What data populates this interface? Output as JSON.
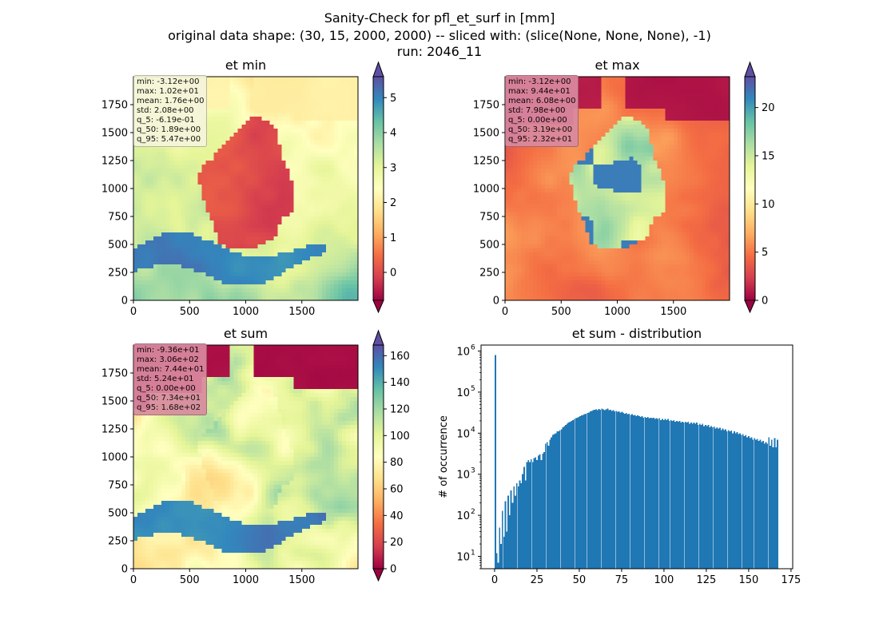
{
  "figure": {
    "title_lines": [
      "Sanity-Check for pfl_et_surf in [mm]",
      "original data shape: (30, 15, 2000, 2000) -- sliced with: (slice(None, None, None), -1)",
      "run: 2046_11"
    ],
    "colormap": "Spectral"
  },
  "chart_data": [
    {
      "type": "heatmap",
      "title": "et min",
      "x_ticks": [
        0,
        500,
        1000,
        1500
      ],
      "y_ticks": [
        0,
        250,
        500,
        750,
        1000,
        1250,
        1500,
        1750
      ],
      "xlim": [
        0,
        2000
      ],
      "ylim": [
        0,
        2000
      ],
      "colorbar": {
        "min": -0.8,
        "max": 5.6,
        "ticks": [
          0,
          1,
          2,
          3,
          4,
          5
        ],
        "extend": "both"
      },
      "stats": [
        "min: -3.12e+00",
        "max: 1.02e+01",
        "mean: 1.76e+00",
        "std: 2.08e+00",
        "q_5: -6.19e-01",
        "q_50: 1.89e+00",
        "q_95: 5.47e+00"
      ],
      "stats_box_color": "#f5f5dc"
    },
    {
      "type": "heatmap",
      "title": "et max",
      "x_ticks": [
        0,
        500,
        1000,
        1500
      ],
      "y_ticks": [
        0,
        250,
        500,
        750,
        1000,
        1250,
        1500,
        1750
      ],
      "xlim": [
        0,
        2000
      ],
      "ylim": [
        0,
        2000
      ],
      "colorbar": {
        "min": 0,
        "max": 23.2,
        "ticks": [
          0,
          5,
          10,
          15,
          20
        ],
        "extend": "both"
      },
      "stats": [
        "min: -3.12e+00",
        "max: 9.44e+01",
        "mean: 6.08e+00",
        "std: 7.98e+00",
        "q_5: 0.00e+00",
        "q_50: 3.19e+00",
        "q_95: 2.32e+01"
      ],
      "stats_box_color": "#d98aa0"
    },
    {
      "type": "heatmap",
      "title": "et sum",
      "x_ticks": [
        0,
        500,
        1000,
        1500
      ],
      "y_ticks": [
        0,
        250,
        500,
        750,
        1000,
        1250,
        1500,
        1750
      ],
      "xlim": [
        0,
        2000
      ],
      "ylim": [
        0,
        2000
      ],
      "colorbar": {
        "min": 0,
        "max": 168,
        "ticks": [
          0,
          20,
          40,
          60,
          80,
          100,
          120,
          140,
          160
        ],
        "extend": "both"
      },
      "stats": [
        "min: -9.36e+01",
        "max: 3.06e+02",
        "mean: 7.44e+01",
        "std: 5.24e+01",
        "q_5: 0.00e+00",
        "q_50: 7.34e+01",
        "q_95: 1.68e+02"
      ],
      "stats_box_color": "#d98aa0"
    },
    {
      "type": "bar",
      "title": "et sum - distribution",
      "ylabel": "# of occurrence",
      "y_scale": "log",
      "xlim": [
        -8,
        176
      ],
      "ylim": [
        5,
        1400000
      ],
      "x_ticks": [
        0,
        25,
        50,
        75,
        100,
        125,
        150,
        175
      ],
      "y_ticks": [
        10,
        100,
        1000,
        10000,
        100000,
        1000000
      ],
      "y_tick_labels": [
        "10",
        "10",
        "10",
        "10",
        "10",
        "10"
      ],
      "y_tick_exponents": [
        "1",
        "2",
        "3",
        "4",
        "5",
        "6"
      ],
      "bar_color": "#1f77b4",
      "bin_width": 0.85,
      "bins": [
        [
          0.0,
          800000
        ],
        [
          0.8,
          12
        ],
        [
          1.7,
          7
        ],
        [
          2.5,
          50
        ],
        [
          3.4,
          20
        ],
        [
          4.2,
          130
        ],
        [
          5.1,
          30
        ],
        [
          5.9,
          220
        ],
        [
          6.8,
          40
        ],
        [
          7.6,
          300
        ],
        [
          8.5,
          100
        ],
        [
          9.3,
          400
        ],
        [
          10.2,
          200
        ],
        [
          11.0,
          500
        ],
        [
          11.9,
          300
        ],
        [
          12.7,
          600
        ],
        [
          13.6,
          500
        ],
        [
          14.4,
          700
        ],
        [
          15.3,
          600
        ],
        [
          16.1,
          1000
        ],
        [
          17.0,
          1500
        ],
        [
          17.8,
          700
        ],
        [
          18.7,
          2000
        ],
        [
          19.5,
          2200
        ],
        [
          20.4,
          2000
        ],
        [
          21.2,
          2300
        ],
        [
          22.1,
          2000
        ],
        [
          22.9,
          2500
        ],
        [
          23.8,
          2600
        ],
        [
          24.6,
          2200
        ],
        [
          25.5,
          2800
        ],
        [
          26.3,
          3000
        ],
        [
          27.2,
          2200
        ],
        [
          28.0,
          3200
        ],
        [
          28.9,
          3500
        ],
        [
          29.7,
          5500
        ],
        [
          30.6,
          6000
        ],
        [
          31.4,
          5000
        ],
        [
          32.3,
          7000
        ],
        [
          33.1,
          8000
        ],
        [
          34.0,
          9000
        ],
        [
          34.8,
          9500
        ],
        [
          35.7,
          10000
        ],
        [
          36.5,
          11000
        ],
        [
          37.4,
          11000
        ],
        [
          38.2,
          12000
        ],
        [
          39.1,
          12500
        ],
        [
          39.9,
          14000
        ],
        [
          40.8,
          15000
        ],
        [
          41.6,
          16000
        ],
        [
          42.5,
          17000
        ],
        [
          43.3,
          18000
        ],
        [
          44.2,
          19000
        ],
        [
          45.0,
          20000
        ],
        [
          45.9,
          21000
        ],
        [
          46.7,
          22000
        ],
        [
          47.6,
          23000
        ],
        [
          48.4,
          24000
        ],
        [
          49.3,
          25000
        ],
        [
          50.1,
          26000
        ],
        [
          51.0,
          27000
        ],
        [
          51.8,
          28000
        ],
        [
          52.7,
          29000
        ],
        [
          53.5,
          30000
        ],
        [
          54.4,
          31000
        ],
        [
          55.2,
          32000
        ],
        [
          56.1,
          34000
        ],
        [
          56.9,
          35000
        ],
        [
          57.8,
          36000
        ],
        [
          58.6,
          37000
        ],
        [
          59.5,
          38000
        ],
        [
          60.3,
          36000
        ],
        [
          61.2,
          39000
        ],
        [
          62.0,
          37000
        ],
        [
          62.9,
          40000
        ],
        [
          63.7,
          38000
        ],
        [
          64.6,
          36000
        ],
        [
          65.4,
          38000
        ],
        [
          66.3,
          40000
        ],
        [
          67.1,
          36000
        ],
        [
          68.0,
          37000
        ],
        [
          68.8,
          35000
        ],
        [
          69.7,
          36000
        ],
        [
          70.5,
          34000
        ],
        [
          71.4,
          35000
        ],
        [
          72.2,
          33000
        ],
        [
          73.1,
          34000
        ],
        [
          73.9,
          32000
        ],
        [
          74.8,
          33000
        ],
        [
          75.6,
          31000
        ],
        [
          76.5,
          30000
        ],
        [
          77.3,
          31000
        ],
        [
          78.2,
          29000
        ],
        [
          79.0,
          30000
        ],
        [
          79.9,
          28000
        ],
        [
          80.7,
          29000
        ],
        [
          81.6,
          27000
        ],
        [
          82.4,
          28000
        ],
        [
          83.3,
          26000
        ],
        [
          84.1,
          27000
        ],
        [
          85.0,
          26000
        ],
        [
          85.8,
          25000
        ],
        [
          86.7,
          26000
        ],
        [
          87.5,
          24000
        ],
        [
          88.4,
          25000
        ],
        [
          89.2,
          24000
        ],
        [
          90.1,
          25000
        ],
        [
          90.9,
          23000
        ],
        [
          91.8,
          24000
        ],
        [
          92.6,
          23000
        ],
        [
          93.5,
          24000
        ],
        [
          94.3,
          22000
        ],
        [
          95.2,
          23000
        ],
        [
          96.0,
          22000
        ],
        [
          96.9,
          23000
        ],
        [
          97.7,
          21000
        ],
        [
          98.6,
          22000
        ],
        [
          99.4,
          21000
        ],
        [
          100.3,
          22000
        ],
        [
          101.1,
          21000
        ],
        [
          102.0,
          22000
        ],
        [
          102.8,
          20000
        ],
        [
          103.7,
          21000
        ],
        [
          104.5,
          20000
        ],
        [
          105.4,
          21000
        ],
        [
          106.2,
          19000
        ],
        [
          107.1,
          20000
        ],
        [
          107.9,
          19000
        ],
        [
          108.8,
          20000
        ],
        [
          109.6,
          18000
        ],
        [
          110.5,
          19000
        ],
        [
          111.3,
          18000
        ],
        [
          112.2,
          19000
        ],
        [
          113.0,
          18000
        ],
        [
          113.9,
          19000
        ],
        [
          114.7,
          17000
        ],
        [
          115.6,
          18000
        ],
        [
          116.4,
          17000
        ],
        [
          117.3,
          18000
        ],
        [
          118.1,
          17000
        ],
        [
          119.0,
          18000
        ],
        [
          119.8,
          16000
        ],
        [
          120.7,
          17000
        ],
        [
          121.5,
          16000
        ],
        [
          122.4,
          17000
        ],
        [
          123.2,
          15000
        ],
        [
          124.1,
          16000
        ],
        [
          124.9,
          15000
        ],
        [
          125.8,
          16000
        ],
        [
          126.6,
          14000
        ],
        [
          127.5,
          15000
        ],
        [
          128.3,
          14000
        ],
        [
          129.2,
          14500
        ],
        [
          130.0,
          13000
        ],
        [
          130.9,
          14000
        ],
        [
          131.7,
          13000
        ],
        [
          132.6,
          13500
        ],
        [
          133.4,
          12000
        ],
        [
          134.3,
          13000
        ],
        [
          135.1,
          12000
        ],
        [
          136.0,
          12500
        ],
        [
          136.8,
          11000
        ],
        [
          137.7,
          12000
        ],
        [
          138.5,
          11000
        ],
        [
          139.4,
          11500
        ],
        [
          140.2,
          10000
        ],
        [
          141.1,
          11000
        ],
        [
          141.9,
          10000
        ],
        [
          142.8,
          10500
        ],
        [
          143.6,
          9500
        ],
        [
          144.5,
          10000
        ],
        [
          145.3,
          9000
        ],
        [
          146.2,
          9500
        ],
        [
          147.0,
          8500
        ],
        [
          147.9,
          9000
        ],
        [
          148.7,
          8000
        ],
        [
          149.6,
          8500
        ],
        [
          150.4,
          7500
        ],
        [
          151.3,
          8000
        ],
        [
          152.1,
          7000
        ],
        [
          153.0,
          7500
        ],
        [
          153.8,
          7000
        ],
        [
          154.7,
          7200
        ],
        [
          155.5,
          6500
        ],
        [
          156.4,
          7000
        ],
        [
          157.2,
          6000
        ],
        [
          158.1,
          6500
        ],
        [
          158.9,
          5500
        ],
        [
          159.8,
          6000
        ],
        [
          160.6,
          5500
        ],
        [
          161.5,
          8000
        ],
        [
          162.3,
          5000
        ],
        [
          163.2,
          7000
        ],
        [
          164.0,
          4500
        ],
        [
          164.9,
          7500
        ],
        [
          165.7,
          4500
        ],
        [
          166.6,
          7000
        ]
      ]
    }
  ]
}
